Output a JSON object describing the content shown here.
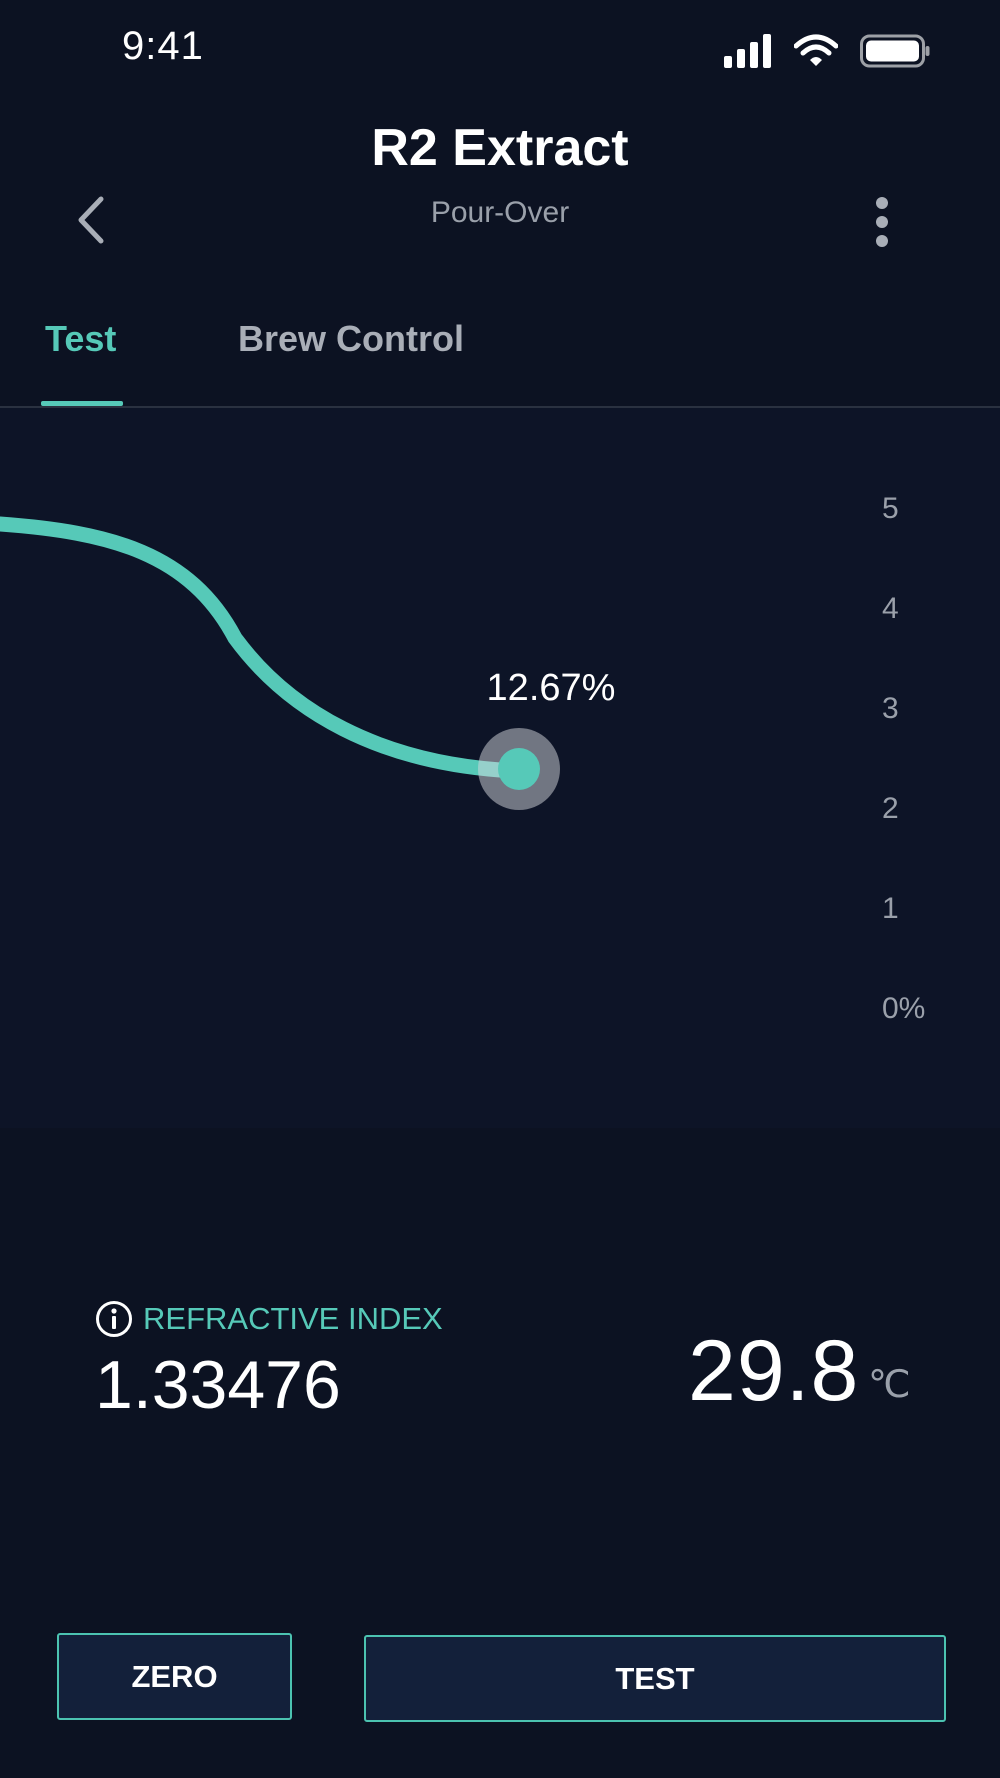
{
  "status_bar": {
    "time": "9:41",
    "icons": [
      "cellular-signal-icon",
      "wifi-icon",
      "battery-icon"
    ]
  },
  "header": {
    "title": "R2 Extract",
    "subtitle": "Pour-Over",
    "back_icon": "chevron-left-icon",
    "more_icon": "more-vertical-icon"
  },
  "tabs": [
    {
      "label": "Test",
      "active": true
    },
    {
      "label": "Brew Control",
      "active": false
    }
  ],
  "chart_data": {
    "type": "line",
    "y_ticks": [
      "5",
      "4",
      "3",
      "2",
      "1",
      "0%"
    ],
    "ylim": [
      0,
      5
    ],
    "current_label": "12.67%",
    "current_value_axis": 2.5,
    "line_color": "#56c9b8",
    "grid": false
  },
  "readings": {
    "refractive_index_label": "REFRACTIVE INDEX",
    "refractive_index_value": "1.33476",
    "temperature_value": "29.8",
    "temperature_unit": "℃"
  },
  "buttons": {
    "zero_label": "ZERO",
    "test_label": "TEST"
  },
  "colors": {
    "accent": "#56c9b8",
    "background": "#0c1222",
    "button_bg": "#13203a"
  }
}
